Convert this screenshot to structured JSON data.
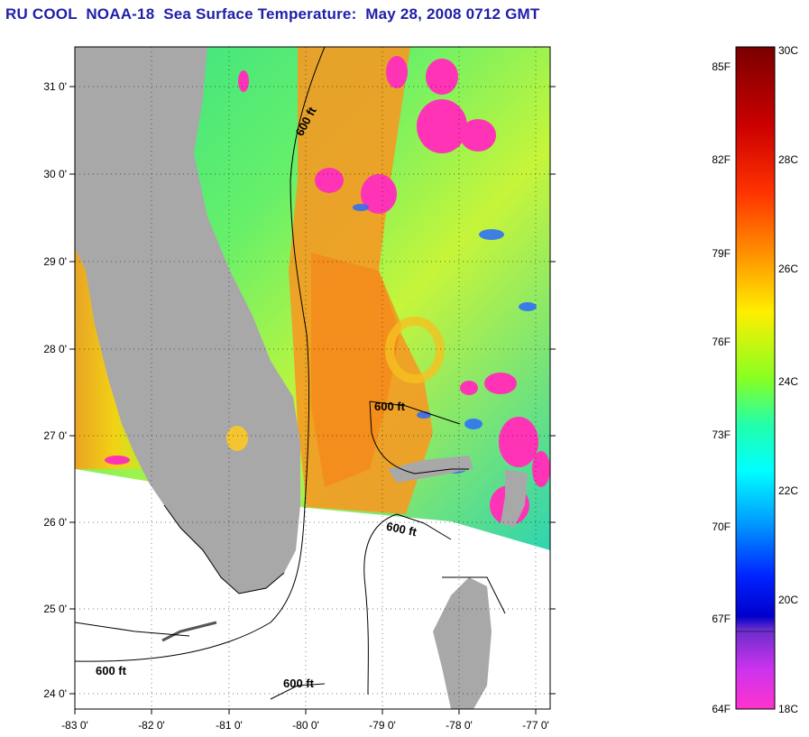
{
  "title": "RU COOL  NOAA-18  Sea Surface Temperature:  May 28, 2008 0712 GMT",
  "map": {
    "latitude_labels": [
      "31 0'",
      "30 0'",
      "29 0'",
      "28 0'",
      "27 0'",
      "26 0'",
      "25 0'",
      "24 0'"
    ],
    "longitude_labels": [
      "-83 0'",
      "-82 0'",
      "-81 0'",
      "-80 0'",
      "-79 0'",
      "-78 0'",
      "-77 0'"
    ],
    "contour_labels": [
      "600 ft",
      "600 ft",
      "600 ft",
      "600 ft",
      "600 ft"
    ],
    "colors": {
      "land": "#a8a8a8",
      "no_data": "#ffffff",
      "cloud": "#ff33b5",
      "frame": "#000000"
    }
  },
  "colorbar": {
    "fahrenheit_labels": [
      "85F",
      "82F",
      "79F",
      "76F",
      "73F",
      "70F",
      "67F",
      "64F"
    ],
    "celsius_labels": [
      "30C",
      "28C",
      "26C",
      "24C",
      "22C",
      "20C",
      "18C"
    ],
    "stops": [
      "#800000",
      "#cc0000",
      "#ff3300",
      "#ff9900",
      "#ffff00",
      "#66ff33",
      "#00ffcc",
      "#00bbff",
      "#0040ff",
      "#0000cc",
      "#8033ff",
      "#ff33cc"
    ]
  }
}
